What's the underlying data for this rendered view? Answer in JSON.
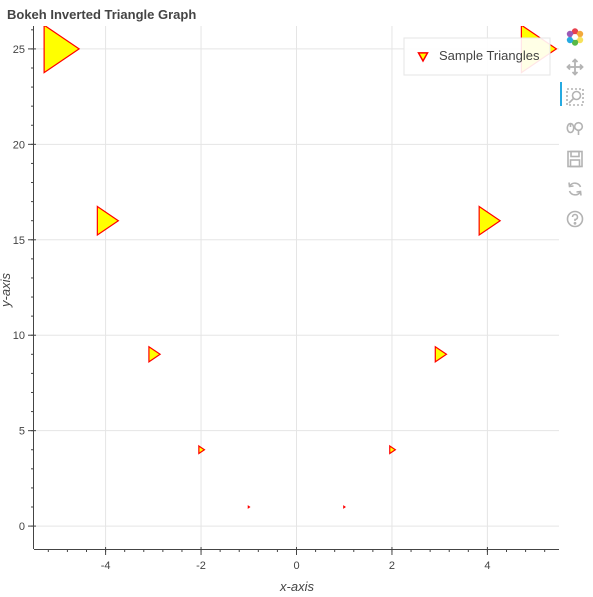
{
  "chart_data": {
    "type": "scatter",
    "marker": "inverted_triangle",
    "title": "Bokeh Inverted Triangle Graph",
    "xlabel": "x-axis",
    "ylabel": "y-axis",
    "xlim": [
      -5.5,
      5.5
    ],
    "ylim": [
      -1.2,
      26.2
    ],
    "x_ticks": [
      -4,
      -2,
      0,
      2,
      4
    ],
    "y_ticks": [
      0,
      5,
      10,
      15,
      20,
      25
    ],
    "grid": true,
    "legend_position": "top-right",
    "series": [
      {
        "name": "Sample Triangles",
        "fill_color": "#ffff00",
        "line_color": "#ff0000",
        "x": [
          -5,
          -4,
          -3,
          -2,
          -1,
          1,
          2,
          3,
          4,
          5
        ],
        "y": [
          25,
          16,
          9,
          4,
          1,
          1,
          4,
          9,
          16,
          25
        ],
        "sizes": [
          50,
          30,
          16,
          8,
          2,
          2,
          8,
          16,
          30,
          50
        ]
      }
    ]
  },
  "toolbar": {
    "tools": [
      "bokeh-logo",
      "pan-icon",
      "box-zoom-icon",
      "wheel-zoom-icon",
      "save-icon",
      "reset-icon",
      "help-icon"
    ]
  },
  "colors": {
    "grid": "#e5e5e5",
    "axis": "#444444",
    "title": "#444444",
    "toolbar_icon": "#b3b3b3",
    "active_tool": "#26aae1"
  }
}
